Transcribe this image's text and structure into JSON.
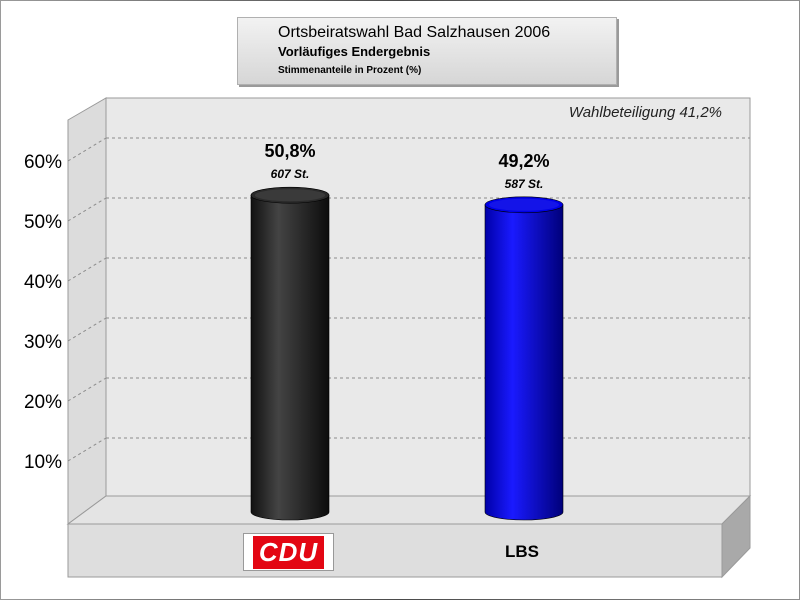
{
  "header": {
    "title": "Ortsbeiratswahl Bad Salzhausen 2006",
    "subtitle": "Vorläufiges Endergebnis",
    "caption": "Stimmenanteile in Prozent (%)"
  },
  "annotation": "Wahlbeteiligung 41,2%",
  "colors": {
    "CDU": "#2a2a2a",
    "LBS": "#0000e6",
    "cdu_logo_red": "#e30613"
  },
  "chart_data": {
    "type": "bar",
    "categories": [
      "CDU",
      "LBS"
    ],
    "values": [
      50.8,
      49.2
    ],
    "value_labels": [
      "50,8%",
      "49,2%"
    ],
    "vote_labels": [
      "607 St.",
      "587 St."
    ],
    "votes": [
      607,
      587
    ],
    "ylim": [
      0,
      60
    ],
    "yticks": [
      10,
      20,
      30,
      40,
      50,
      60
    ],
    "ytick_labels": [
      "10%",
      "20%",
      "30%",
      "40%",
      "50%",
      "60%"
    ],
    "grid": true,
    "legend": "none",
    "style": "3d-cylinder"
  }
}
